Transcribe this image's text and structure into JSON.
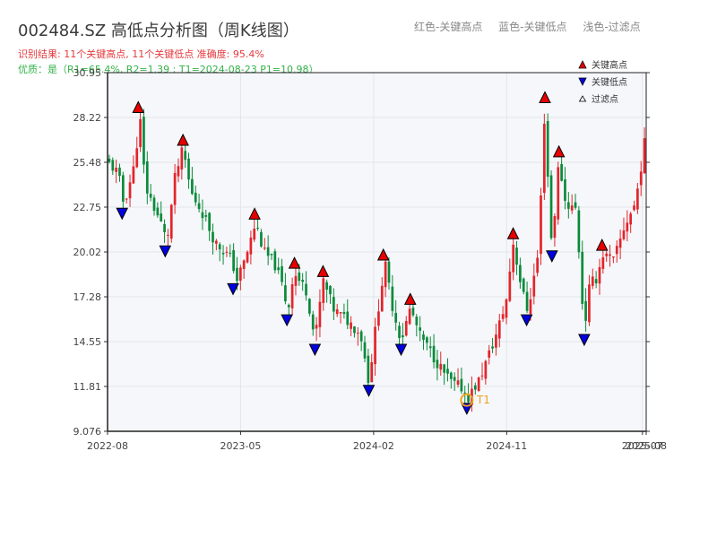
{
  "header": {
    "title": "002484.SZ 高低点分析图（周K线图）",
    "result_line": "识别结果: 11个关键高点, 11个关键低点   准确度: 95.4%",
    "quality_line": "优质：是（R1=65.4%, R2=1.39 ; T1=2024-08-23 P1=10.98）"
  },
  "top_legend": {
    "high": "红色-关键高点",
    "low": "蓝色-关键低点",
    "filtered": "浅色-过滤点"
  },
  "colors": {
    "up": "#e3242b",
    "down": "#0a8a3a",
    "high_marker": "#e60000",
    "low_marker": "#0000e0",
    "t1_ring": "#f0a020",
    "plot_bg": "#f5f7fa"
  },
  "chart_data": {
    "type": "candlestick",
    "title": "002484.SZ 高低点分析图（周K线图）",
    "xlabel": "",
    "ylabel": "",
    "ylim": [
      9.076,
      30.95
    ],
    "yticks": [
      "9.076",
      "11.81",
      "14.55",
      "17.28",
      "20.02",
      "22.75",
      "25.48",
      "28.22",
      "30.95"
    ],
    "xticks": [
      {
        "label": "2022-08",
        "pos": 0
      },
      {
        "label": "2023-05",
        "pos": 0.247
      },
      {
        "label": "2024-02",
        "pos": 0.494
      },
      {
        "label": "2024-11",
        "pos": 0.741
      },
      {
        "label": "2025-07",
        "pos": 0.993
      },
      {
        "label": "2025-08",
        "pos": 1.0
      }
    ],
    "grid": true,
    "legend_position": "top-right",
    "legend": [
      {
        "label": "关键高点",
        "marker": "triangle-up",
        "color": "#e60000"
      },
      {
        "label": "关键低点",
        "marker": "triangle-down",
        "color": "#0000e0"
      },
      {
        "label": "过滤点",
        "marker": "triangle-up-hollow",
        "color": "#888888"
      }
    ],
    "price_path": [
      [
        0,
        25.5
      ],
      [
        0.02,
        24.8
      ],
      [
        0.03,
        22.9
      ],
      [
        0.05,
        25.3
      ],
      [
        0.06,
        28.3
      ],
      [
        0.07,
        24.0
      ],
      [
        0.1,
        21.7
      ],
      [
        0.11,
        20.6
      ],
      [
        0.125,
        24.5
      ],
      [
        0.14,
        26.3
      ],
      [
        0.155,
        23.6
      ],
      [
        0.175,
        22.5
      ],
      [
        0.2,
        20.6
      ],
      [
        0.23,
        19.6
      ],
      [
        0.24,
        18.3
      ],
      [
        0.255,
        19.5
      ],
      [
        0.275,
        21.8
      ],
      [
        0.29,
        20.0
      ],
      [
        0.31,
        19.3
      ],
      [
        0.325,
        17.9
      ],
      [
        0.335,
        16.4
      ],
      [
        0.345,
        18.8
      ],
      [
        0.37,
        17.6
      ],
      [
        0.385,
        14.6
      ],
      [
        0.4,
        18.3
      ],
      [
        0.42,
        16.5
      ],
      [
        0.45,
        15.7
      ],
      [
        0.47,
        15.0
      ],
      [
        0.485,
        12.1
      ],
      [
        0.5,
        16.0
      ],
      [
        0.515,
        19.3
      ],
      [
        0.53,
        16.5
      ],
      [
        0.545,
        14.6
      ],
      [
        0.562,
        16.6
      ],
      [
        0.58,
        14.9
      ],
      [
        0.6,
        13.9
      ],
      [
        0.625,
        12.6
      ],
      [
        0.64,
        12.0
      ],
      [
        0.66,
        11.7
      ],
      [
        0.667,
        11.0
      ],
      [
        0.69,
        12.2
      ],
      [
        0.72,
        14.8
      ],
      [
        0.74,
        17.0
      ],
      [
        0.753,
        20.6
      ],
      [
        0.77,
        17.6
      ],
      [
        0.78,
        16.4
      ],
      [
        0.8,
        20.0
      ],
      [
        0.812,
        28.9
      ],
      [
        0.82,
        22.5
      ],
      [
        0.825,
        20.3
      ],
      [
        0.838,
        25.6
      ],
      [
        0.85,
        23.0
      ],
      [
        0.87,
        22.6
      ],
      [
        0.885,
        15.2
      ],
      [
        0.895,
        18.0
      ],
      [
        0.91,
        18.5
      ],
      [
        0.918,
        19.9
      ],
      [
        0.94,
        19.5
      ],
      [
        0.96,
        21.6
      ],
      [
        0.98,
        23.0
      ],
      [
        1.0,
        27.3
      ]
    ],
    "key_highs": [
      {
        "pos": 0.057,
        "value": 28.3
      },
      {
        "pos": 0.14,
        "value": 26.3
      },
      {
        "pos": 0.273,
        "value": 21.8
      },
      {
        "pos": 0.347,
        "value": 18.8
      },
      {
        "pos": 0.4,
        "value": 18.3
      },
      {
        "pos": 0.512,
        "value": 19.3
      },
      {
        "pos": 0.562,
        "value": 16.6
      },
      {
        "pos": 0.753,
        "value": 20.6
      },
      {
        "pos": 0.812,
        "value": 28.9
      },
      {
        "pos": 0.838,
        "value": 25.6
      },
      {
        "pos": 0.918,
        "value": 19.9
      }
    ],
    "key_lows": [
      {
        "pos": 0.027,
        "value": 22.9
      },
      {
        "pos": 0.107,
        "value": 20.6
      },
      {
        "pos": 0.233,
        "value": 18.3
      },
      {
        "pos": 0.333,
        "value": 16.4
      },
      {
        "pos": 0.385,
        "value": 14.6
      },
      {
        "pos": 0.485,
        "value": 12.1
      },
      {
        "pos": 0.545,
        "value": 14.6
      },
      {
        "pos": 0.667,
        "value": 11.0
      },
      {
        "pos": 0.778,
        "value": 16.4
      },
      {
        "pos": 0.825,
        "value": 20.3
      },
      {
        "pos": 0.885,
        "value": 15.2
      }
    ],
    "t1": {
      "label": "T1",
      "pos": 0.667,
      "value": 10.98
    }
  }
}
